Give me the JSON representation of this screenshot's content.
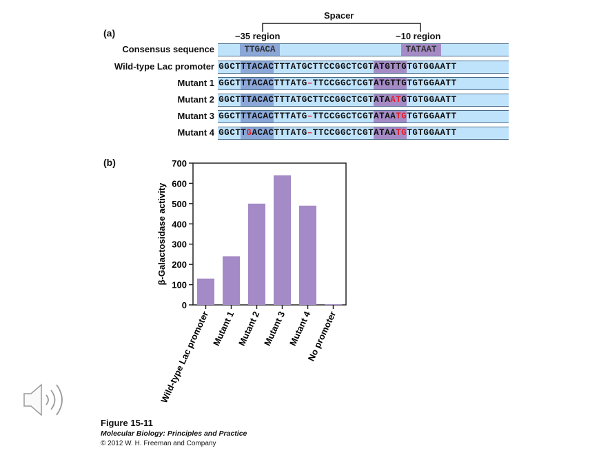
{
  "panel_a": {
    "label": "(a)",
    "spacer_label": "Spacer",
    "region_35_label": "−35 region",
    "region_10_label": "−10 region",
    "consensus_label": "Consensus sequence",
    "consensus_35": "TTGACA",
    "consensus_10": "TATAAT",
    "rows": [
      {
        "label": "Wild-type Lac promoter",
        "seq": "GGCTTTACACTTTATGCTTCCGGCTCGTATGTTGTGTGGAATT",
        "mutations": [],
        "deletions": []
      },
      {
        "label": "Mutant 1",
        "seq": "GGCTTTACACTTTATG–TTCCGGCTCGTATGTTGTGTGGAATT",
        "mutations": [],
        "deletions": [
          16
        ]
      },
      {
        "label": "Mutant 2",
        "seq": "GGCTTTACACTTTATGCTTCCGGCTCGTATAATGTGTGGAATT",
        "mutations": [
          31,
          32
        ],
        "deletions": []
      },
      {
        "label": "Mutant 3",
        "seq": "GGCTTTACACTTTATG–TTCCGGCTCGTATAATGTGTGGAATT",
        "mutations": [
          32,
          33
        ],
        "deletions": [
          16
        ]
      },
      {
        "label": "Mutant 4",
        "seq": "GGCTTGACACTTTATG–TTCCGGCTCGTATAATGTGTGGAATT",
        "mutations": [
          5,
          32,
          33
        ],
        "deletions": [
          16
        ]
      }
    ]
  },
  "panel_b": {
    "label": "(b)"
  },
  "chart_data": {
    "type": "bar",
    "categories": [
      "Wild-type Lac promoter",
      "Mutant 1",
      "Mutant 2",
      "Mutant 3",
      "Mutant 4",
      "No promoter"
    ],
    "values": [
      130,
      240,
      500,
      640,
      490,
      3
    ],
    "ylabel": "β-Galactosidase activity",
    "xlabel": "",
    "ylim": [
      0,
      700
    ],
    "yticks": [
      0,
      100,
      200,
      300,
      400,
      500,
      600,
      700
    ],
    "bar_color": "#a48ac6",
    "grid": false
  },
  "caption": {
    "title": "Figure 15-11",
    "subtitle": "Molecular Biology: Principles and Practice",
    "copyright": "© 2012 W. H. Freeman and Company"
  },
  "speaker_icon": "speaker-volume-icon"
}
